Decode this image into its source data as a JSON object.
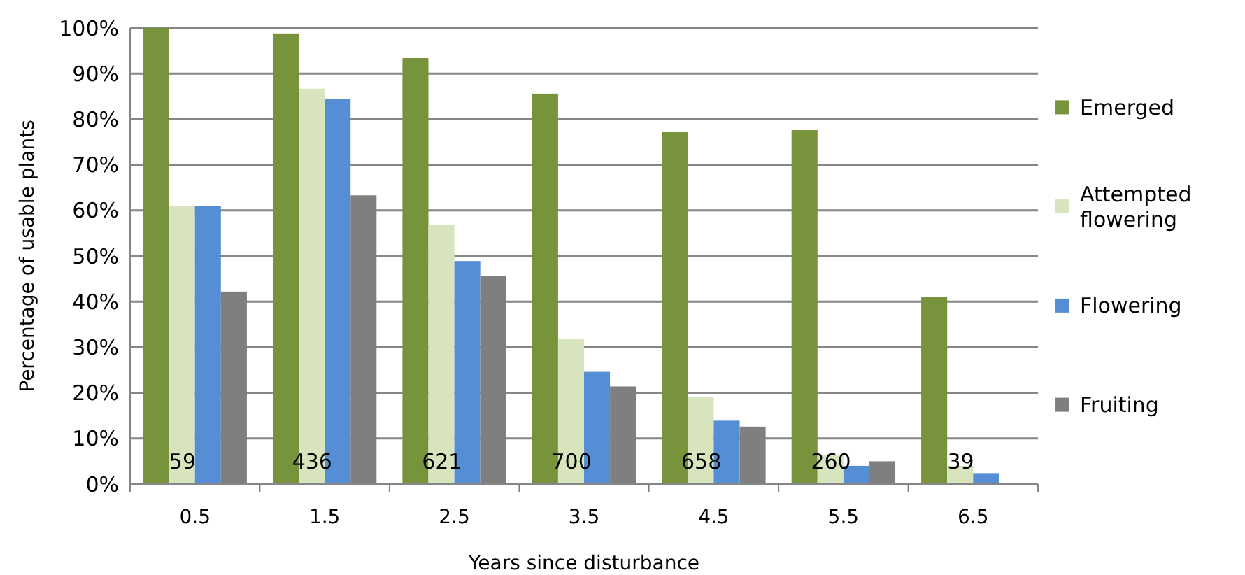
{
  "chart_data": {
    "type": "bar",
    "xlabel": "Years since disturbance",
    "ylabel": "Percentage of usable plants",
    "categories": [
      "0.5",
      "1.5",
      "2.5",
      "3.5",
      "4.5",
      "5.5",
      "6.5"
    ],
    "series": [
      {
        "name": "Emerged",
        "color": "#77933c",
        "values": [
          100,
          98.8,
          93.4,
          85.6,
          77.3,
          77.6,
          41
        ]
      },
      {
        "name": "Attempted flowering",
        "color": "#d7e4bd",
        "values": [
          60.9,
          86.7,
          56.8,
          31.8,
          19.1,
          6.4,
          4
        ]
      },
      {
        "name": "Flowering",
        "color": "#558ed5",
        "values": [
          61,
          84.5,
          48.9,
          24.6,
          13.9,
          4,
          2.4
        ]
      },
      {
        "name": "Fruiting",
        "color": "#7f7f7f",
        "values": [
          42.2,
          63.3,
          45.7,
          21.4,
          12.6,
          5,
          0
        ]
      }
    ],
    "ylim": [
      0,
      100
    ],
    "yticks": [
      {
        "value": 0,
        "label": "0%"
      },
      {
        "value": 10,
        "label": "10%"
      },
      {
        "value": 20,
        "label": "20%"
      },
      {
        "value": 30,
        "label": "30%"
      },
      {
        "value": 40,
        "label": "40%"
      },
      {
        "value": 50,
        "label": "50%"
      },
      {
        "value": 60,
        "label": "60%"
      },
      {
        "value": 70,
        "label": "70%"
      },
      {
        "value": 80,
        "label": "80%"
      },
      {
        "value": 90,
        "label": "90%"
      },
      {
        "value": 100,
        "label": "100%"
      }
    ],
    "grid": "y",
    "legend": "right",
    "annotations": [
      {
        "text": "59",
        "x": "0.5",
        "y": 5
      },
      {
        "text": "436",
        "x": "1.5",
        "y": 5
      },
      {
        "text": "621",
        "x": "2.5",
        "y": 5
      },
      {
        "text": "700",
        "x": "3.5",
        "y": 5
      },
      {
        "text": "658",
        "x": "4.5",
        "y": 5
      },
      {
        "text": "260",
        "x": "5.5",
        "y": 5
      },
      {
        "text": "39",
        "x": "6.5",
        "y": 5
      }
    ]
  }
}
